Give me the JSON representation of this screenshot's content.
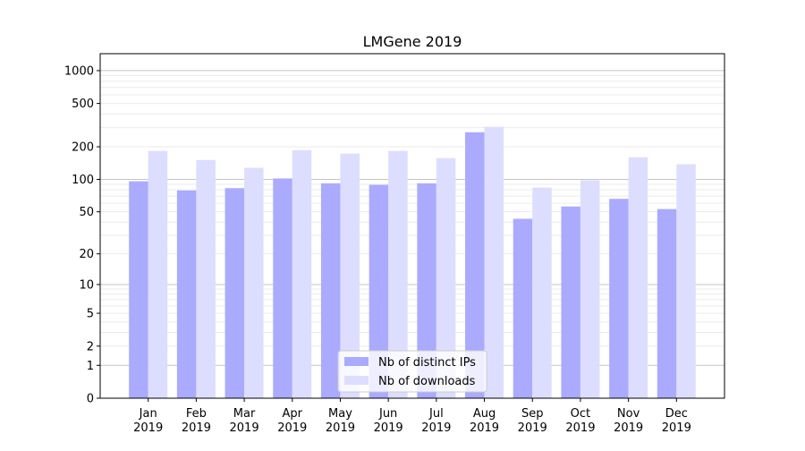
{
  "chart_data": {
    "type": "bar",
    "title": "LMGene 2019",
    "xlabel": "",
    "ylabel": "",
    "yscale": "symlog (log10(1+y))",
    "ylim": [
      0,
      1430
    ],
    "yticks": [
      0,
      1,
      2,
      5,
      10,
      20,
      50,
      100,
      200,
      500,
      1000
    ],
    "grid": true,
    "legend_position": "bottom-center",
    "categories": [
      [
        "Jan",
        "2019"
      ],
      [
        "Feb",
        "2019"
      ],
      [
        "Mar",
        "2019"
      ],
      [
        "Apr",
        "2019"
      ],
      [
        "May",
        "2019"
      ],
      [
        "Jun",
        "2019"
      ],
      [
        "Jul",
        "2019"
      ],
      [
        "Aug",
        "2019"
      ],
      [
        "Sep",
        "2019"
      ],
      [
        "Oct",
        "2019"
      ],
      [
        "Nov",
        "2019"
      ],
      [
        "Dec",
        "2019"
      ]
    ],
    "series": [
      {
        "name": "Nb of distinct IPs",
        "color": "#aaaaff",
        "values": [
          96,
          79,
          83,
          102,
          92,
          89,
          92,
          272,
          43,
          56,
          66,
          53
        ]
      },
      {
        "name": "Nb of downloads",
        "color": "#ddddff",
        "values": [
          183,
          151,
          128,
          186,
          173,
          183,
          157,
          305,
          84,
          98,
          160,
          138
        ]
      }
    ]
  }
}
